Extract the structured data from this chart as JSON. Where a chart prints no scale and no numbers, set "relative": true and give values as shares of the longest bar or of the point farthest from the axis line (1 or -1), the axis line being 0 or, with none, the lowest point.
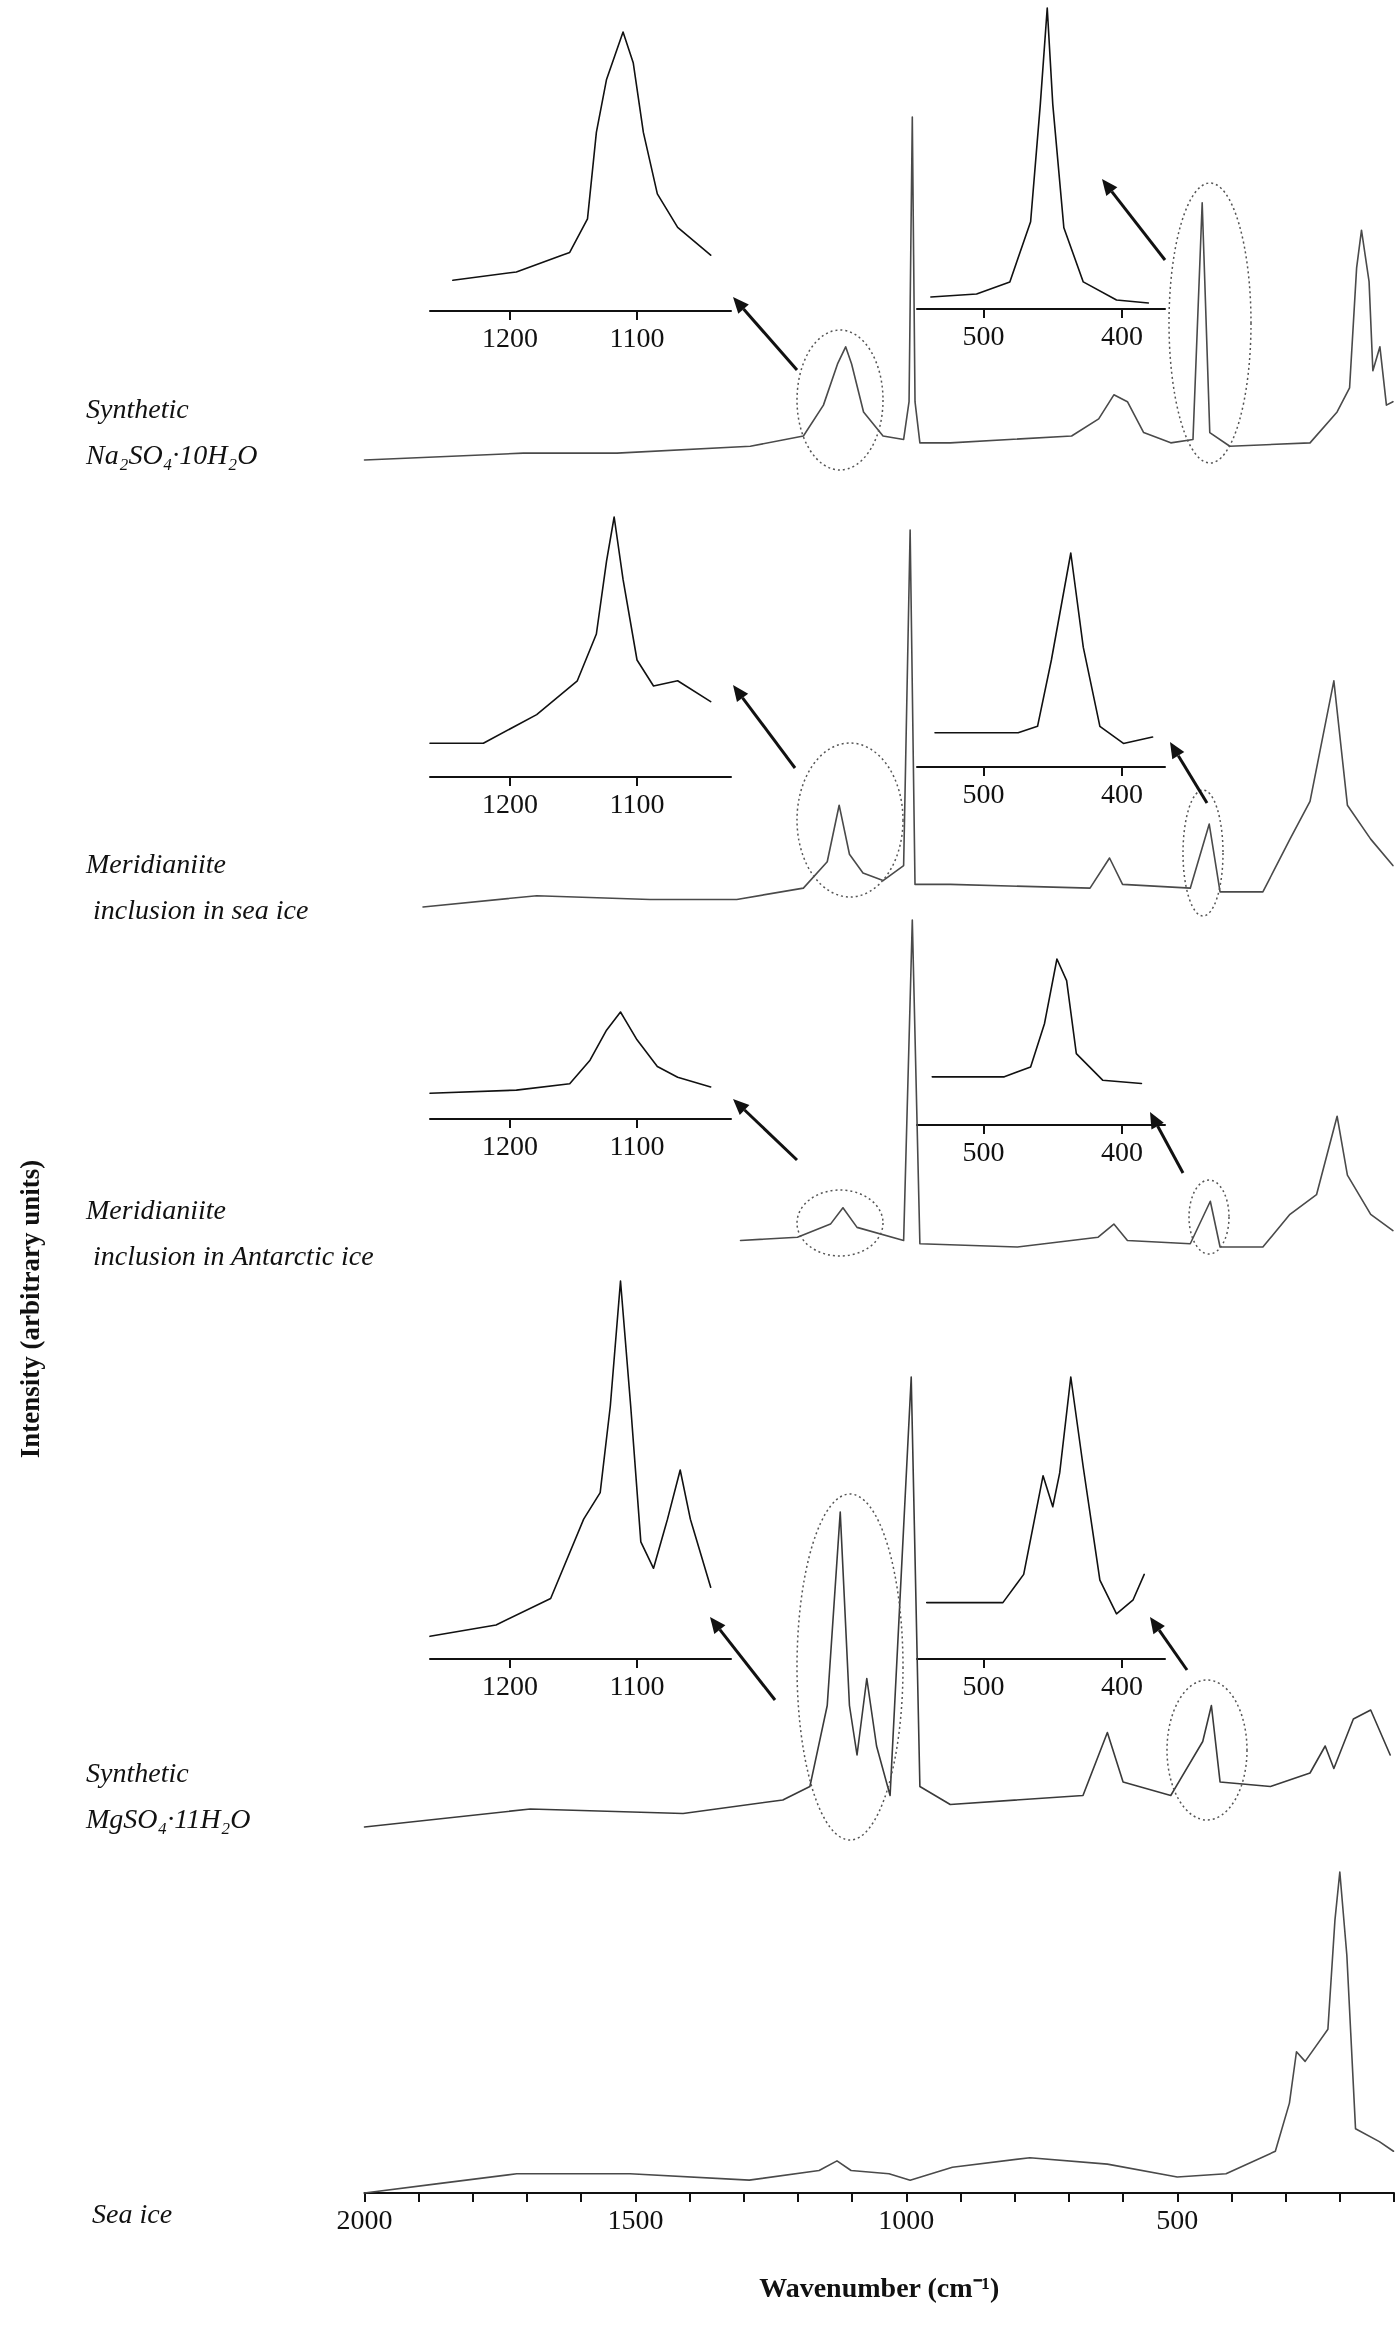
{
  "chart_data": [
    {
      "type": "line",
      "relative": true,
      "xlim": [
        1263,
        1026
      ],
      "xticks": [
        1200,
        1100
      ],
      "tick_labels": "x",
      "color": "#111111",
      "x": [
        1245,
        1195,
        1153,
        1139,
        1132,
        1124,
        1111,
        1103,
        1095,
        1084,
        1068,
        1042
      ],
      "values": [
        0.11,
        0.14,
        0.21,
        0.33,
        0.64,
        0.83,
        1.0,
        0.89,
        0.64,
        0.42,
        0.3,
        0.2
      ]
    },
    {
      "type": "line",
      "relative": true,
      "xlim": [
        548,
        369
      ],
      "xticks": [
        500,
        400
      ],
      "tick_labels": "x",
      "color": "#111111",
      "x": [
        538,
        505,
        481,
        466,
        459,
        454,
        450,
        442,
        428,
        404,
        381
      ],
      "values": [
        0.04,
        0.05,
        0.09,
        0.29,
        0.68,
        1.0,
        0.68,
        0.27,
        0.09,
        0.03,
        0.02
      ]
    },
    {
      "type": "line",
      "relative": true,
      "xlim": [
        2000,
        100
      ],
      "series": [
        {
          "name": "Synthetic\nNa₂SO₄·10H₂O",
          "color": "#4a4a4a",
          "x": [
            2000,
            1707,
            1534,
            1288,
            1190,
            1153,
            1127,
            1112,
            1101,
            1079,
            1043,
            1005,
            995,
            989,
            984,
            975,
            919,
            695,
            645,
            617,
            592,
            562,
            512,
            471,
            454,
            440,
            403,
            255,
            205,
            182,
            169,
            160,
            146,
            139,
            126,
            114,
            102
          ],
          "values": [
            0,
            0.02,
            0.02,
            0.04,
            0.07,
            0.16,
            0.28,
            0.33,
            0.28,
            0.14,
            0.07,
            0.06,
            0.17,
            1.0,
            0.17,
            0.05,
            0.05,
            0.07,
            0.12,
            0.19,
            0.17,
            0.08,
            0.05,
            0.06,
            0.75,
            0.08,
            0.04,
            0.05,
            0.14,
            0.21,
            0.56,
            0.67,
            0.52,
            0.26,
            0.33,
            0.16,
            0.17
          ]
        }
      ]
    },
    {
      "type": "line",
      "relative": true,
      "xlim": [
        1263,
        1026
      ],
      "xticks": [
        1200,
        1100
      ],
      "tick_labels": "x",
      "color": "#111111",
      "x": [
        1263,
        1221,
        1179,
        1147,
        1132,
        1124,
        1118,
        1111,
        1100,
        1087,
        1068,
        1042
      ],
      "values": [
        0.13,
        0.13,
        0.24,
        0.37,
        0.55,
        0.83,
        1.0,
        0.76,
        0.45,
        0.35,
        0.37,
        0.29
      ]
    },
    {
      "type": "line",
      "relative": true,
      "xlim": [
        548,
        369
      ],
      "xticks": [
        500,
        400
      ],
      "tick_labels": "x",
      "color": "#111111",
      "x": [
        535,
        475,
        461,
        451,
        437,
        428,
        416,
        399,
        378
      ],
      "values": [
        0.16,
        0.16,
        0.19,
        0.5,
        1.0,
        0.56,
        0.19,
        0.11,
        0.14
      ]
    },
    {
      "type": "line",
      "relative": true,
      "xlim": [
        2000,
        100
      ],
      "series": [
        {
          "name": "Meridianiite\n inclusion in sea ice",
          "color": "#4a4a4a",
          "x": [
            1892,
            1682,
            1473,
            1313,
            1190,
            1146,
            1124,
            1105,
            1080,
            1043,
            1005,
            993,
            984,
            919,
            661,
            625,
            601,
            476,
            441,
            421,
            342,
            292,
            255,
            211,
            186,
            143,
            102
          ],
          "values": [
            0,
            0.03,
            0.02,
            0.02,
            0.05,
            0.12,
            0.27,
            0.14,
            0.09,
            0.07,
            0.11,
            1.0,
            0.06,
            0.06,
            0.05,
            0.13,
            0.06,
            0.05,
            0.22,
            0.04,
            0.04,
            0.18,
            0.28,
            0.6,
            0.27,
            0.18,
            0.11
          ]
        }
      ]
    },
    {
      "type": "line",
      "relative": true,
      "xlim": [
        1263,
        1026
      ],
      "xticks": [
        1200,
        1100
      ],
      "tick_labels": "x",
      "color": "#111111",
      "x": [
        1263,
        1195,
        1153,
        1137,
        1124,
        1113,
        1100,
        1084,
        1068,
        1042
      ],
      "values": [
        0.24,
        0.27,
        0.33,
        0.55,
        0.83,
        1.0,
        0.74,
        0.49,
        0.39,
        0.3
      ]
    },
    {
      "type": "line",
      "relative": true,
      "xlim": [
        548,
        369
      ],
      "xticks": [
        500,
        400
      ],
      "tick_labels": "x",
      "color": "#111111",
      "x": [
        537,
        485,
        466,
        456,
        447,
        440,
        433,
        414,
        386
      ],
      "values": [
        0.29,
        0.29,
        0.35,
        0.61,
        1.0,
        0.87,
        0.43,
        0.27,
        0.25
      ]
    },
    {
      "type": "line",
      "relative": true,
      "xlim": [
        2000,
        100
      ],
      "ylabel": "Intensity (arbitrary units)",
      "series": [
        {
          "name": "Meridianiite\n inclusion in Antarctic ice",
          "color": "#4a4a4a",
          "x": [
            1306,
            1201,
            1140,
            1117,
            1091,
            1005,
            989,
            975,
            795,
            646,
            617,
            592,
            476,
            439,
            421,
            342,
            292,
            243,
            205,
            186,
            143,
            102
          ],
          "values": [
            0.02,
            0.03,
            0.07,
            0.12,
            0.06,
            0.02,
            1.0,
            0.01,
            0,
            0.03,
            0.07,
            0.02,
            0.01,
            0.14,
            0,
            0,
            0.1,
            0.16,
            0.4,
            0.22,
            0.1,
            0.05
          ]
        }
      ]
    },
    {
      "type": "line",
      "relative": true,
      "xlim": [
        1263,
        1026
      ],
      "xticks": [
        1200,
        1100
      ],
      "tick_labels": "x",
      "color": "#111111",
      "x": [
        1263,
        1211,
        1168,
        1142,
        1129,
        1121,
        1113,
        1105,
        1097,
        1087,
        1076,
        1066,
        1058,
        1042
      ],
      "values": [
        0.06,
        0.09,
        0.16,
        0.37,
        0.44,
        0.67,
        1.0,
        0.67,
        0.31,
        0.24,
        0.37,
        0.5,
        0.37,
        0.19
      ]
    },
    {
      "type": "line",
      "relative": true,
      "xlim": [
        548,
        369
      ],
      "xticks": [
        500,
        400
      ],
      "tick_labels": "x",
      "color": "#111111",
      "x": [
        541,
        486,
        471,
        457,
        450,
        445,
        437,
        428,
        416,
        404,
        392,
        384
      ],
      "values": [
        0.2,
        0.2,
        0.3,
        0.65,
        0.54,
        0.66,
        1.0,
        0.68,
        0.28,
        0.16,
        0.21,
        0.3
      ]
    },
    {
      "type": "line",
      "relative": true,
      "xlim": [
        2000,
        100
      ],
      "series": [
        {
          "name": "Synthetic\nMgSO₄·11H₂O",
          "color": "#3a3a3a",
          "x": [
            2000,
            1694,
            1412,
            1228,
            1178,
            1146,
            1122,
            1105,
            1091,
            1073,
            1055,
            1030,
            991,
            975,
            919,
            674,
            629,
            600,
            512,
            453,
            437,
            421,
            328,
            255,
            227,
            211,
            175,
            143,
            107
          ],
          "values": [
            0,
            0.04,
            0.03,
            0.06,
            0.09,
            0.27,
            0.7,
            0.27,
            0.16,
            0.33,
            0.18,
            0.07,
            1.0,
            0.09,
            0.05,
            0.07,
            0.21,
            0.1,
            0.07,
            0.19,
            0.27,
            0.1,
            0.09,
            0.12,
            0.18,
            0.13,
            0.24,
            0.26,
            0.16
          ]
        }
      ]
    },
    {
      "type": "line",
      "relative": true,
      "xlim": [
        2000,
        100
      ],
      "xlabel": "Wavenumber (cm⁻¹)",
      "tick_labels": "x",
      "xticks": [
        2000,
        {
          "value": 1900,
          "label": null
        },
        {
          "value": 1800,
          "label": null
        },
        {
          "value": 1700,
          "label": null
        },
        {
          "value": 1600,
          "label": null
        },
        1500,
        {
          "value": 1400,
          "label": null
        },
        {
          "value": 1300,
          "label": null
        },
        {
          "value": 1200,
          "label": null
        },
        {
          "value": 1100,
          "label": null
        },
        1000,
        {
          "value": 900,
          "label": null
        },
        {
          "value": 800,
          "label": null
        },
        {
          "value": 700,
          "label": null
        },
        {
          "value": 600,
          "label": null
        },
        500,
        {
          "value": 400,
          "label": null
        },
        {
          "value": 300,
          "label": null
        },
        {
          "value": 200,
          "label": null
        },
        {
          "value": 100,
          "label": null
        }
      ],
      "series": [
        {
          "name": "Sea ice",
          "color": "#4a4a4a",
          "x": [
            2000,
            1860,
            1719,
            1510,
            1290,
            1161,
            1128,
            1102,
            1032,
            993,
            915,
            772,
            629,
            500,
            410,
            319,
            293,
            280,
            264,
            222,
            209,
            200,
            187,
            171,
            127,
            101
          ],
          "values": [
            0,
            0.03,
            0.06,
            0.06,
            0.04,
            0.07,
            0.1,
            0.07,
            0.06,
            0.04,
            0.08,
            0.11,
            0.09,
            0.05,
            0.06,
            0.13,
            0.28,
            0.44,
            0.41,
            0.51,
            0.85,
            1.0,
            0.74,
            0.2,
            0.16,
            0.13
          ]
        }
      ]
    }
  ]
}
